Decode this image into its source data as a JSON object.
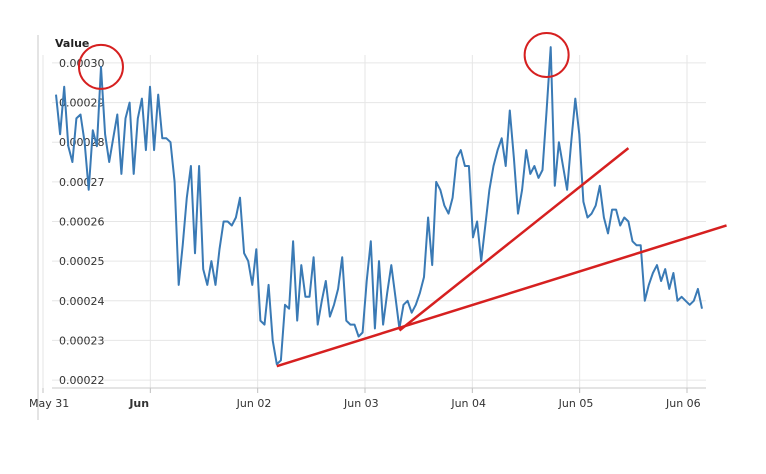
{
  "chart_data": {
    "type": "line",
    "title": "Value",
    "xlabel": "",
    "ylabel": "",
    "x_tick_labels": [
      "May 31",
      "Jun",
      "Jun 02",
      "Jun 03",
      "Jun 04",
      "Jun 05",
      "Jun 06"
    ],
    "x_tick_bold": [
      false,
      true,
      false,
      false,
      false,
      false,
      false
    ],
    "y_tick_labels": [
      "0.00022",
      "0.00023",
      "0.00024",
      "0.00025",
      "0.00026",
      "0.00027",
      "0.00028",
      "0.00029",
      "0.00030"
    ],
    "ylim": [
      0.000218,
      0.000302
    ],
    "grid": true,
    "series": [
      {
        "color": "#3a7ab5",
        "values": [
          0.000292,
          0.000282,
          0.000294,
          0.000279,
          0.000275,
          0.000286,
          0.000287,
          0.00028,
          0.000268,
          0.000283,
          0.000279,
          0.000299,
          0.000282,
          0.000275,
          0.000281,
          0.000287,
          0.000272,
          0.000286,
          0.00029,
          0.000272,
          0.000286,
          0.000291,
          0.000278,
          0.000294,
          0.000278,
          0.000292,
          0.000281,
          0.000281,
          0.00028,
          0.00027,
          0.000244,
          0.000254,
          0.000266,
          0.000274,
          0.000252,
          0.000274,
          0.000248,
          0.000244,
          0.00025,
          0.000244,
          0.000253,
          0.00026,
          0.00026,
          0.000259,
          0.000261,
          0.000266,
          0.000252,
          0.00025,
          0.000244,
          0.000253,
          0.000235,
          0.000234,
          0.000244,
          0.00023,
          0.000224,
          0.000225,
          0.000239,
          0.000238,
          0.000255,
          0.000235,
          0.000249,
          0.000241,
          0.000241,
          0.000251,
          0.000234,
          0.00024,
          0.000245,
          0.000236,
          0.000239,
          0.000243,
          0.000251,
          0.000235,
          0.000234,
          0.000234,
          0.000231,
          0.000232,
          0.000245,
          0.000255,
          0.000233,
          0.00025,
          0.000234,
          0.000242,
          0.000249,
          0.000241,
          0.000233,
          0.000239,
          0.00024,
          0.000237,
          0.000239,
          0.000242,
          0.000246,
          0.000261,
          0.000249,
          0.00027,
          0.000268,
          0.000264,
          0.000262,
          0.000266,
          0.000276,
          0.000278,
          0.000274,
          0.000274,
          0.000256,
          0.00026,
          0.00025,
          0.000259,
          0.000268,
          0.000274,
          0.000278,
          0.000281,
          0.000274,
          0.000288,
          0.000276,
          0.000262,
          0.000268,
          0.000278,
          0.000272,
          0.000274,
          0.000271,
          0.000273,
          0.000288,
          0.000304,
          0.000269,
          0.00028,
          0.000274,
          0.000268,
          0.00028,
          0.000291,
          0.000282,
          0.000265,
          0.000261,
          0.000262,
          0.000264,
          0.000269,
          0.000261,
          0.000257,
          0.000263,
          0.000263,
          0.000259,
          0.000261,
          0.00026,
          0.000255,
          0.000254,
          0.000254,
          0.00024,
          0.000244,
          0.000247,
          0.000249,
          0.000245,
          0.000248,
          0.000243,
          0.000247,
          0.00024,
          0.000241,
          0.00024,
          0.000239,
          0.00024,
          0.000243,
          0.000238
        ]
      }
    ],
    "annotations": [
      {
        "type": "circle",
        "color": "#d62020",
        "x_index": 11,
        "y": 0.000299
      },
      {
        "type": "circle",
        "color": "#d62020",
        "x_index": 120,
        "y": 0.000302
      },
      {
        "type": "trendline",
        "color": "#d62020",
        "from_index": 54,
        "from_y": 0.0002235,
        "to_index": 164,
        "to_y": 0.000259
      },
      {
        "type": "trendline",
        "color": "#d62020",
        "from_index": 84,
        "from_y": 0.0002325,
        "to_index": 140,
        "to_y": 0.0002785
      }
    ]
  }
}
